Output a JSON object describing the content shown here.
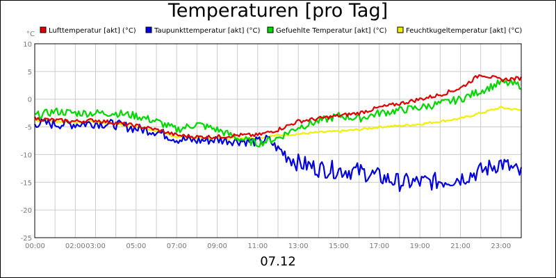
{
  "chart_data": {
    "type": "line",
    "title": "Temperaturen [pro Tag]",
    "date_label": "07.12",
    "yunit": "°C",
    "ylim": [
      -25,
      10
    ],
    "yticks": [
      10,
      5,
      0,
      -5,
      -10,
      -15,
      -20,
      -25
    ],
    "xlim": [
      0,
      24
    ],
    "xticks": [
      {
        "h": 0,
        "label": "00:00"
      },
      {
        "h": 2,
        "label": "02:00"
      },
      {
        "h": 3,
        "label": "03:00"
      },
      {
        "h": 5,
        "label": "05:00"
      },
      {
        "h": 7,
        "label": "07:00"
      },
      {
        "h": 9,
        "label": "09:00"
      },
      {
        "h": 11,
        "label": "11:00"
      },
      {
        "h": 13,
        "label": "13:00"
      },
      {
        "h": 15,
        "label": "15:00"
      },
      {
        "h": 17,
        "label": "17:00"
      },
      {
        "h": 19,
        "label": "19:00"
      },
      {
        "h": 21,
        "label": "21:00"
      },
      {
        "h": 23,
        "label": "23:00"
      }
    ],
    "grid": true,
    "legend_position": "top",
    "series": [
      {
        "name": "Lufttemperatur [akt] (°C)",
        "color": "#e00000",
        "points": [
          [
            0,
            -3.5
          ],
          [
            1,
            -3.8
          ],
          [
            2,
            -4.0
          ],
          [
            3,
            -3.8
          ],
          [
            4,
            -4.3
          ],
          [
            5,
            -4.8
          ],
          [
            6,
            -5.5
          ],
          [
            7,
            -6.5
          ],
          [
            8,
            -6.8
          ],
          [
            9,
            -6.8
          ],
          [
            10,
            -6.5
          ],
          [
            11,
            -6.5
          ],
          [
            12,
            -5.5
          ],
          [
            13,
            -4.0
          ],
          [
            14,
            -3.5
          ],
          [
            15,
            -3.0
          ],
          [
            16,
            -2.5
          ],
          [
            17,
            -1.5
          ],
          [
            18,
            -0.8
          ],
          [
            19,
            0.0
          ],
          [
            20,
            0.8
          ],
          [
            21,
            2.0
          ],
          [
            22,
            4.5
          ],
          [
            23,
            3.5
          ],
          [
            24,
            3.8
          ]
        ]
      },
      {
        "name": "Taupunkttemperatur [akt] (°C)",
        "color": "#0000e0",
        "points": [
          [
            0,
            -4.3
          ],
          [
            1,
            -4.5
          ],
          [
            2,
            -4.5
          ],
          [
            3,
            -4.3
          ],
          [
            4,
            -4.6
          ],
          [
            5,
            -5.3
          ],
          [
            6,
            -5.8
          ],
          [
            7,
            -7.2
          ],
          [
            8,
            -7.5
          ],
          [
            9,
            -7.3
          ],
          [
            10,
            -7.5
          ],
          [
            11,
            -7.7
          ],
          [
            11.5,
            -7.2
          ],
          [
            12,
            -9.0
          ],
          [
            13,
            -11.5
          ],
          [
            14,
            -12.5
          ],
          [
            15,
            -12.8
          ],
          [
            16,
            -13.0
          ],
          [
            17,
            -14.0
          ],
          [
            18,
            -15.0
          ],
          [
            19,
            -15.0
          ],
          [
            20,
            -14.8
          ],
          [
            21,
            -14.2
          ],
          [
            22,
            -13.0
          ],
          [
            23,
            -11.5
          ],
          [
            24,
            -13.5
          ]
        ]
      },
      {
        "name": "Gefuehlte Temperatur [akt] (°C)",
        "color": "#00d800",
        "points": [
          [
            0,
            -3.0
          ],
          [
            1,
            -2.2
          ],
          [
            2,
            -2.5
          ],
          [
            3,
            -2.5
          ],
          [
            4,
            -2.5
          ],
          [
            5,
            -3.0
          ],
          [
            6,
            -4.0
          ],
          [
            7,
            -5.5
          ],
          [
            8,
            -4.5
          ],
          [
            9,
            -5.5
          ],
          [
            10,
            -7.0
          ],
          [
            11,
            -8.0
          ],
          [
            12,
            -7.0
          ],
          [
            13,
            -5.0
          ],
          [
            14,
            -4.0
          ],
          [
            15,
            -3.0
          ],
          [
            16,
            -3.5
          ],
          [
            17,
            -2.5
          ],
          [
            18,
            -2.0
          ],
          [
            19,
            -1.5
          ],
          [
            20,
            -0.8
          ],
          [
            21,
            0.0
          ],
          [
            22,
            1.5
          ],
          [
            23,
            3.0
          ],
          [
            24,
            2.5
          ]
        ]
      },
      {
        "name": "Feuchtkugeltemperatur [akt] (°C)",
        "color": "#f0f000",
        "points": [
          [
            0,
            -3.8
          ],
          [
            1,
            -4.0
          ],
          [
            2,
            -4.2
          ],
          [
            3,
            -4.0
          ],
          [
            4,
            -4.5
          ],
          [
            5,
            -5.0
          ],
          [
            6,
            -5.7
          ],
          [
            7,
            -6.8
          ],
          [
            8,
            -7.0
          ],
          [
            9,
            -7.0
          ],
          [
            10,
            -7.0
          ],
          [
            11,
            -7.0
          ],
          [
            12,
            -6.5
          ],
          [
            13,
            -6.3
          ],
          [
            14,
            -6.0
          ],
          [
            15,
            -5.8
          ],
          [
            16,
            -5.5
          ],
          [
            17,
            -5.0
          ],
          [
            18,
            -4.8
          ],
          [
            19,
            -4.5
          ],
          [
            20,
            -4.0
          ],
          [
            21,
            -3.5
          ],
          [
            22,
            -2.5
          ],
          [
            23,
            -1.5
          ],
          [
            24,
            -2.0
          ]
        ]
      }
    ]
  }
}
